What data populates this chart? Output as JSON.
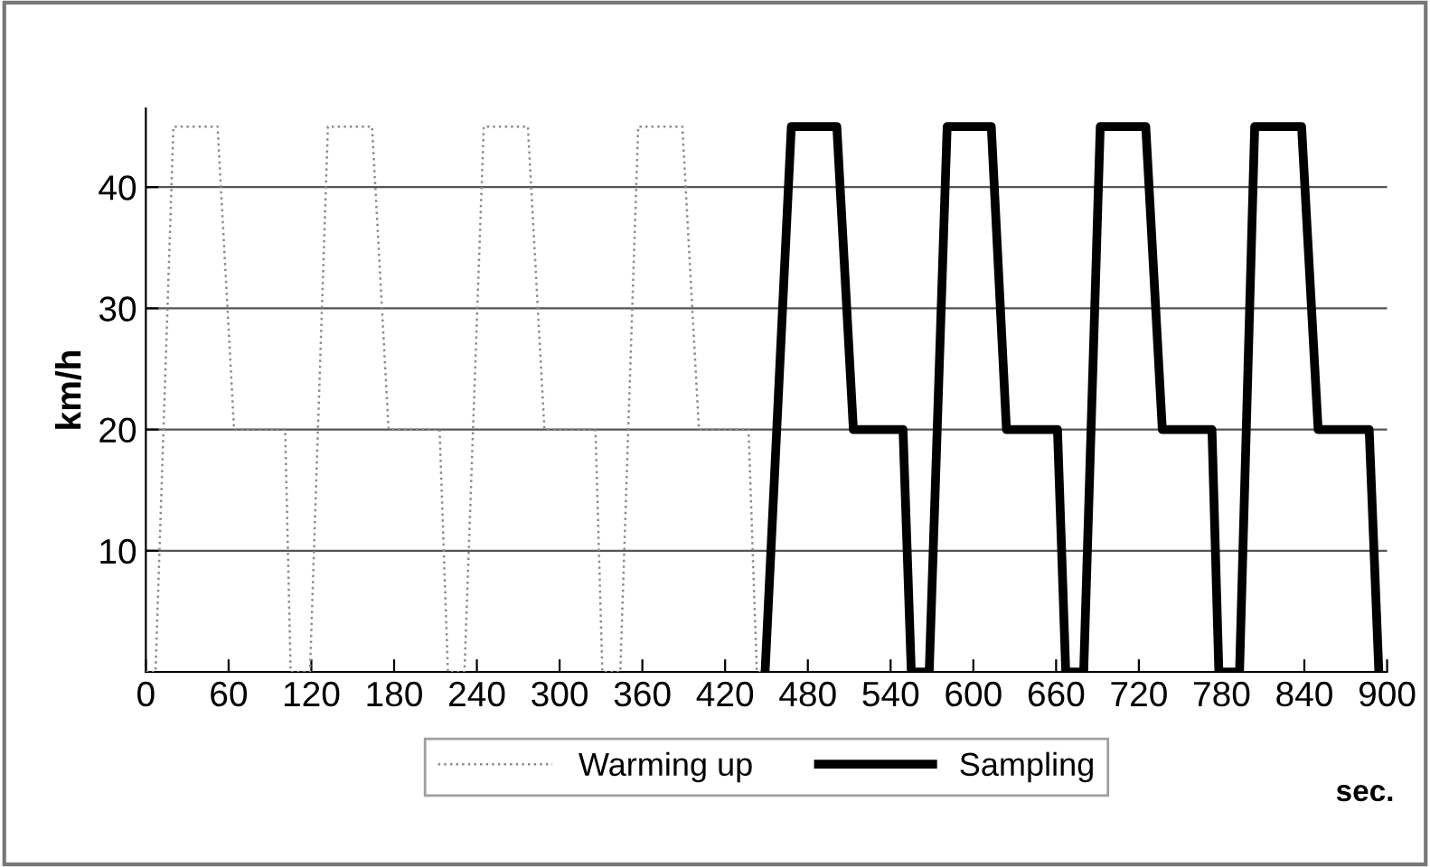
{
  "chart_data": {
    "type": "line",
    "ylabel": "km/h",
    "xlabel": "sec.",
    "xlim": [
      0,
      900
    ],
    "xticks": [
      0,
      60,
      120,
      180,
      240,
      300,
      360,
      420,
      480,
      540,
      600,
      660,
      720,
      780,
      840,
      900
    ],
    "ylim": [
      0,
      46.5
    ],
    "yticks": [
      10,
      20,
      30,
      40
    ],
    "grid": "y",
    "legend": "bottom",
    "series": [
      {
        "name": "Warming up",
        "color": "#8c8c8c",
        "line_style": "dotted",
        "x": [
          0,
          7,
          20,
          52,
          64,
          101,
          105,
          119,
          132,
          164,
          176,
          213,
          219,
          231,
          245,
          277,
          289,
          326,
          331,
          344,
          357,
          389,
          401,
          437,
          443,
          449
        ],
        "values": [
          0,
          0,
          45,
          45,
          20,
          20,
          0,
          0,
          45,
          45,
          20,
          20,
          0,
          0,
          45,
          45,
          20,
          20,
          0,
          0,
          45,
          45,
          20,
          20,
          0,
          0
        ]
      },
      {
        "name": "Sampling",
        "color": "#000000",
        "line_style": "solid",
        "x": [
          449,
          468,
          501,
          513,
          549,
          555,
          568,
          581,
          613,
          624,
          661,
          667,
          680,
          692,
          725,
          737,
          773,
          778,
          793,
          804,
          838,
          850,
          887,
          894
        ],
        "values": [
          0,
          45,
          45,
          20,
          20,
          0,
          0,
          45,
          45,
          20,
          20,
          0,
          0,
          45,
          45,
          20,
          20,
          0,
          0,
          45,
          45,
          20,
          20,
          0
        ]
      }
    ]
  }
}
